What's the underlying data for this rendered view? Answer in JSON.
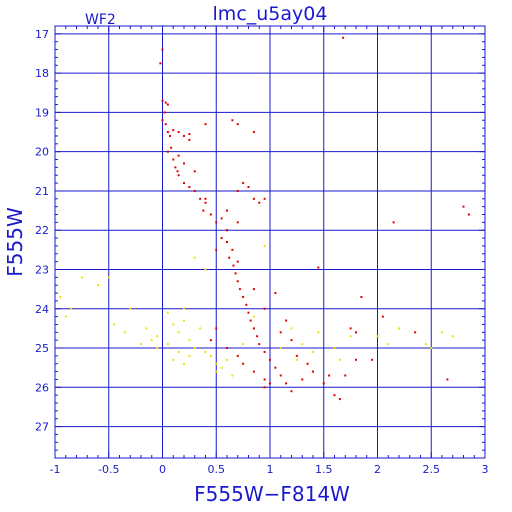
{
  "chart_data": {
    "type": "scatter",
    "title": "lmc_u5ay04",
    "panel_label": "WF2",
    "xlabel": "F555W−F814W",
    "ylabel": "F555W",
    "xlim": [
      -1,
      3
    ],
    "ylim": [
      27.8,
      16.8
    ],
    "y_inverted": true,
    "grid": true,
    "x_ticks": [
      -1,
      -0.5,
      0,
      0.5,
      1,
      1.5,
      2,
      2.5,
      3
    ],
    "x_tick_labels": [
      "-1",
      "-0.5",
      "0",
      "0.5",
      "1",
      "1.5",
      "2",
      "2.5",
      "3"
    ],
    "y_ticks": [
      17,
      18,
      19,
      20,
      21,
      22,
      23,
      24,
      25,
      26,
      27
    ],
    "y_tick_labels": [
      "17",
      "18",
      "19",
      "20",
      "21",
      "22",
      "23",
      "24",
      "25",
      "26",
      "27"
    ],
    "series": [
      {
        "color": "#e00000",
        "points": [
          [
            0.0,
            17.4
          ],
          [
            -0.02,
            17.75
          ],
          [
            1.68,
            17.1
          ],
          [
            0.0,
            18.7
          ],
          [
            0.03,
            18.75
          ],
          [
            0.05,
            18.8
          ],
          [
            0.02,
            19.0
          ],
          [
            0.0,
            19.2
          ],
          [
            0.03,
            19.3
          ],
          [
            0.05,
            19.5
          ],
          [
            0.07,
            19.6
          ],
          [
            0.1,
            19.45
          ],
          [
            0.15,
            19.5
          ],
          [
            0.2,
            19.6
          ],
          [
            0.25,
            19.55
          ],
          [
            0.65,
            19.2
          ],
          [
            0.7,
            19.3
          ],
          [
            0.4,
            19.3
          ],
          [
            0.08,
            19.9
          ],
          [
            0.1,
            20.2
          ],
          [
            0.12,
            20.4
          ],
          [
            0.14,
            20.5
          ],
          [
            0.15,
            20.6
          ],
          [
            0.2,
            20.8
          ],
          [
            0.25,
            20.9
          ],
          [
            0.3,
            21.0
          ],
          [
            0.35,
            21.2
          ],
          [
            0.4,
            21.3
          ],
          [
            0.38,
            21.5
          ],
          [
            0.45,
            21.6
          ],
          [
            0.5,
            21.8
          ],
          [
            0.55,
            21.7
          ],
          [
            0.6,
            21.5
          ],
          [
            0.7,
            21.0
          ],
          [
            0.75,
            20.8
          ],
          [
            0.8,
            20.9
          ],
          [
            0.85,
            21.2
          ],
          [
            0.9,
            21.3
          ],
          [
            0.95,
            21.2
          ],
          [
            0.7,
            21.8
          ],
          [
            0.6,
            22.0
          ],
          [
            0.55,
            22.2
          ],
          [
            0.6,
            22.3
          ],
          [
            0.65,
            22.5
          ],
          [
            0.62,
            22.7
          ],
          [
            0.66,
            22.9
          ],
          [
            0.68,
            23.1
          ],
          [
            0.7,
            23.3
          ],
          [
            0.72,
            23.5
          ],
          [
            0.75,
            23.7
          ],
          [
            0.78,
            23.9
          ],
          [
            0.8,
            24.1
          ],
          [
            0.82,
            24.3
          ],
          [
            0.85,
            24.5
          ],
          [
            0.88,
            24.7
          ],
          [
            0.9,
            24.9
          ],
          [
            0.95,
            25.1
          ],
          [
            1.0,
            25.3
          ],
          [
            1.05,
            25.5
          ],
          [
            1.1,
            25.7
          ],
          [
            1.15,
            25.9
          ],
          [
            1.2,
            26.1
          ],
          [
            1.3,
            25.8
          ],
          [
            1.4,
            25.6
          ],
          [
            1.5,
            25.9
          ],
          [
            1.6,
            26.2
          ],
          [
            1.65,
            26.3
          ],
          [
            1.55,
            25.7
          ],
          [
            1.7,
            25.7
          ],
          [
            1.8,
            25.3
          ],
          [
            1.95,
            25.3
          ],
          [
            1.75,
            24.5
          ],
          [
            1.8,
            24.6
          ],
          [
            1.85,
            23.7
          ],
          [
            2.15,
            21.8
          ],
          [
            2.05,
            24.2
          ],
          [
            2.35,
            24.6
          ],
          [
            2.65,
            25.8
          ],
          [
            2.8,
            21.4
          ],
          [
            2.85,
            21.6
          ],
          [
            1.2,
            24.8
          ],
          [
            1.1,
            24.6
          ],
          [
            1.25,
            25.2
          ],
          [
            1.35,
            25.4
          ],
          [
            0.5,
            24.5
          ],
          [
            0.45,
            24.8
          ],
          [
            0.6,
            25.0
          ],
          [
            0.7,
            25.2
          ],
          [
            0.75,
            25.4
          ],
          [
            0.85,
            25.6
          ],
          [
            0.95,
            25.8
          ],
          [
            1.0,
            25.9
          ],
          [
            0.95,
            26.0
          ],
          [
            0.6,
            22.0
          ],
          [
            0.7,
            22.8
          ],
          [
            0.5,
            22.5
          ],
          [
            0.85,
            23.5
          ],
          [
            1.05,
            23.6
          ],
          [
            0.95,
            24.0
          ],
          [
            1.15,
            24.3
          ],
          [
            0.4,
            21.2
          ],
          [
            0.3,
            20.5
          ],
          [
            0.2,
            20.3
          ],
          [
            0.05,
            20.0
          ],
          [
            0.15,
            20.1
          ],
          [
            1.45,
            22.95
          ],
          [
            0.25,
            19.7
          ],
          [
            0.85,
            19.5
          ]
        ]
      },
      {
        "color": "#f0e000",
        "points": [
          [
            -0.95,
            23.7
          ],
          [
            -0.9,
            24.2
          ],
          [
            -0.85,
            24.0
          ],
          [
            -0.75,
            23.2
          ],
          [
            -0.6,
            23.4
          ],
          [
            -0.5,
            23.2
          ],
          [
            -0.3,
            24.0
          ],
          [
            -0.45,
            24.4
          ],
          [
            -0.35,
            24.6
          ],
          [
            -0.2,
            24.9
          ],
          [
            -0.15,
            24.5
          ],
          [
            -0.1,
            24.8
          ],
          [
            -0.05,
            24.7
          ],
          [
            0.05,
            24.1
          ],
          [
            0.1,
            24.4
          ],
          [
            0.15,
            24.6
          ],
          [
            0.2,
            24.3
          ],
          [
            0.25,
            24.8
          ],
          [
            0.3,
            25.0
          ],
          [
            0.35,
            24.5
          ],
          [
            0.4,
            25.1
          ],
          [
            0.45,
            25.2
          ],
          [
            0.5,
            25.4
          ],
          [
            0.55,
            25.5
          ],
          [
            0.6,
            25.3
          ],
          [
            0.3,
            22.7
          ],
          [
            0.4,
            23.0
          ],
          [
            0.95,
            22.4
          ],
          [
            0.2,
            24.0
          ],
          [
            0.15,
            25.1
          ],
          [
            0.25,
            25.2
          ],
          [
            1.2,
            24.5
          ],
          [
            1.3,
            24.9
          ],
          [
            1.4,
            25.1
          ],
          [
            1.45,
            24.6
          ],
          [
            1.1,
            25.0
          ],
          [
            1.25,
            25.3
          ],
          [
            1.6,
            25.0
          ],
          [
            1.75,
            24.7
          ],
          [
            1.65,
            25.3
          ],
          [
            2.0,
            24.7
          ],
          [
            2.1,
            24.9
          ],
          [
            2.2,
            24.5
          ],
          [
            2.45,
            24.9
          ],
          [
            2.5,
            25.0
          ],
          [
            2.6,
            24.6
          ],
          [
            2.7,
            24.7
          ],
          [
            0.05,
            24.9
          ],
          [
            0.1,
            25.3
          ],
          [
            -0.05,
            25.0
          ],
          [
            0.2,
            25.4
          ],
          [
            0.5,
            25.6
          ],
          [
            0.65,
            25.7
          ],
          [
            0.75,
            24.9
          ],
          [
            0.85,
            24.2
          ]
        ]
      }
    ]
  }
}
